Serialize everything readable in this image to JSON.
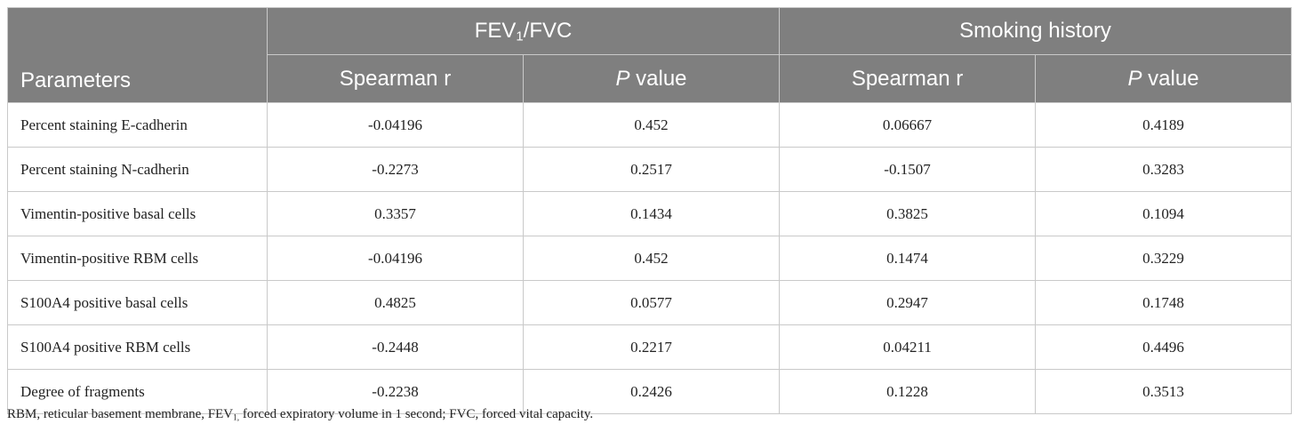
{
  "table": {
    "header": {
      "parameters_label": "Parameters",
      "group1": {
        "pre": "FEV",
        "sub": "1",
        "post": "/FVC"
      },
      "group2": "Smoking history",
      "spearman_label": "Spearman r",
      "p_italic": "P",
      "p_rest": " value"
    },
    "rows": [
      {
        "label": "Percent staining E-cadherin",
        "fev_r": "-0.04196",
        "fev_p": "0.452",
        "smk_r": "0.06667",
        "smk_p": "0.4189"
      },
      {
        "label": "Percent staining N-cadherin",
        "fev_r": "-0.2273",
        "fev_p": "0.2517",
        "smk_r": "-0.1507",
        "smk_p": "0.3283"
      },
      {
        "label": "Vimentin-positive basal cells",
        "fev_r": "0.3357",
        "fev_p": "0.1434",
        "smk_r": "0.3825",
        "smk_p": "0.1094"
      },
      {
        "label": "Vimentin-positive RBM cells",
        "fev_r": "-0.04196",
        "fev_p": "0.452",
        "smk_r": "0.1474",
        "smk_p": "0.3229"
      },
      {
        "label": "S100A4 positive basal cells",
        "fev_r": "0.4825",
        "fev_p": "0.0577",
        "smk_r": "0.2947",
        "smk_p": "0.1748"
      },
      {
        "label": "S100A4 positive RBM cells",
        "fev_r": "-0.2448",
        "fev_p": "0.2217",
        "smk_r": "0.04211",
        "smk_p": "0.4496"
      },
      {
        "label": "Degree of fragments",
        "fev_r": "-0.2238",
        "fev_p": "0.2426",
        "smk_r": "0.1228",
        "smk_p": "0.3513"
      }
    ]
  },
  "footnote": {
    "part1": "RBM, reticular basement membrane, FEV",
    "sub": "1,",
    "part2": " forced expiratory volume in 1 second; FVC, forced vital capacity."
  }
}
